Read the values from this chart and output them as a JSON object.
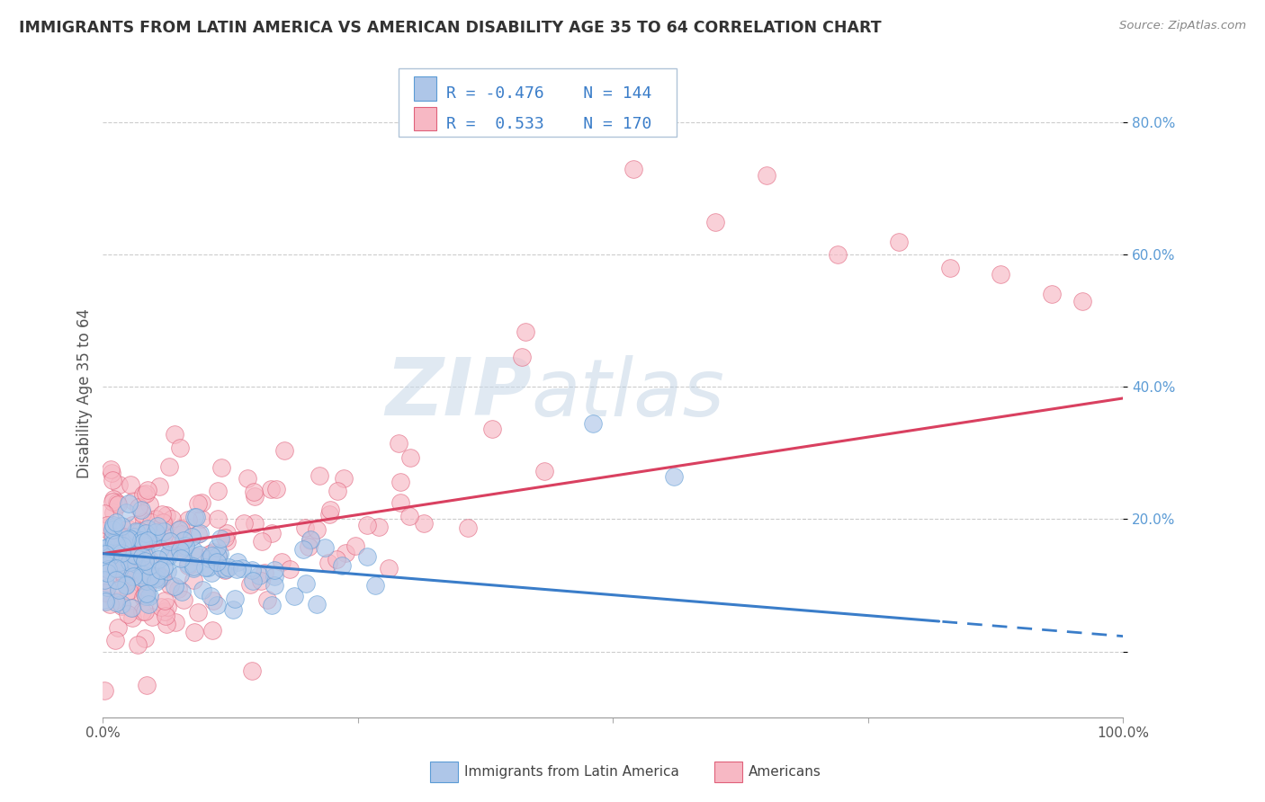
{
  "title": "IMMIGRANTS FROM LATIN AMERICA VS AMERICAN DISABILITY AGE 35 TO 64 CORRELATION CHART",
  "source": "Source: ZipAtlas.com",
  "ylabel": "Disability Age 35 to 64",
  "legend_label_blue": "Immigrants from Latin America",
  "legend_label_pink": "Americans",
  "r_blue": -0.476,
  "n_blue": 144,
  "r_pink": 0.533,
  "n_pink": 170,
  "color_blue_fill": "#aec6e8",
  "color_blue_edge": "#5b9bd5",
  "color_pink_fill": "#f7b8c4",
  "color_pink_edge": "#e0607a",
  "trendline_blue": "#3a7dc9",
  "trendline_pink": "#d94060",
  "watermark_zip": "ZIP",
  "watermark_atlas": "atlas",
  "background_color": "#ffffff",
  "grid_color": "#cccccc",
  "xlim": [
    0.0,
    1.0
  ],
  "ylim": [
    -0.1,
    0.88
  ],
  "y_ticks_right": [
    0.0,
    0.2,
    0.4,
    0.6,
    0.8
  ],
  "y_tick_labels_right": [
    "",
    "20.0%",
    "40.0%",
    "60.0%",
    "80.0%"
  ],
  "trend_blue_a": 0.148,
  "trend_blue_b": -0.125,
  "trend_pink_a": 0.148,
  "trend_pink_b": 0.235,
  "trend_blue_dash_start": 0.82
}
